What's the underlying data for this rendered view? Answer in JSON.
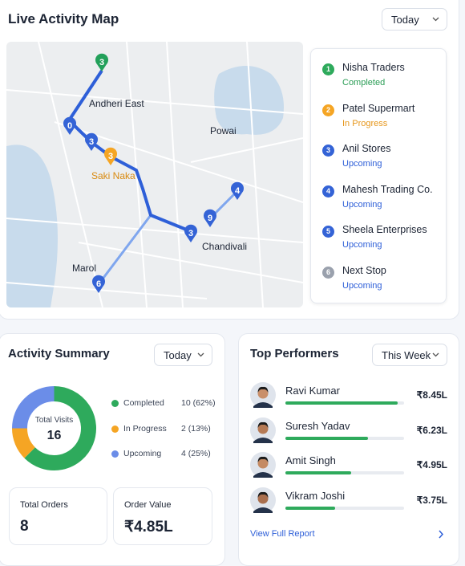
{
  "map": {
    "title": "Live Activity Map",
    "filter": "Today",
    "places": [
      "Andheri East",
      "Powai",
      "Saki Naka",
      "Chandivali",
      "Marol"
    ],
    "pins": [
      "3",
      "0",
      "3",
      "3",
      "4",
      "9",
      "3",
      "6"
    ],
    "stops": [
      {
        "number": "1",
        "name": "Nisha Traders",
        "status": "Completed"
      },
      {
        "number": "2",
        "name": "Patel Supermart",
        "status": "In Progress"
      },
      {
        "number": "3",
        "name": "Anil Stores",
        "status": "Upcoming"
      },
      {
        "number": "4",
        "name": "Mahesh Trading Co.",
        "status": "Upcoming"
      },
      {
        "number": "5",
        "name": "Sheela Enterprises",
        "status": "Upcoming"
      },
      {
        "number": "6",
        "name": "Next Stop",
        "status": "Upcoming"
      }
    ]
  },
  "summary": {
    "title": "Activity Summary",
    "filter": "Today",
    "center_label": "Total Visits",
    "total": 16,
    "segments": [
      {
        "name": "Completed",
        "value": 10,
        "value_label": "10 (62%)",
        "color": "#2eaa5c"
      },
      {
        "name": "In Progress",
        "value": 2,
        "value_label": "2 (13%)",
        "color": "#f5a524"
      },
      {
        "name": "Upcoming",
        "value": 4,
        "value_label": "4 (25%)",
        "color": "#6b8de8"
      }
    ],
    "cards": [
      {
        "label": "Total Orders",
        "value": 8
      },
      {
        "label": "Order Value",
        "value": "₹4.85L"
      }
    ]
  },
  "performers": {
    "title": "Top Performers",
    "filter": "This Week",
    "link": "View Full Report",
    "bar_color": "#2eaa5c",
    "items": [
      {
        "name": "Ravi Kumar",
        "value": 8.45,
        "value_label": "₹8.45L"
      },
      {
        "name": "Suresh Yadav",
        "value": 6.23,
        "value_label": "₹6.23L"
      },
      {
        "name": "Amit Singh",
        "value": 4.95,
        "value_label": "₹4.95L"
      },
      {
        "name": "Vikram Joshi",
        "value": 3.75,
        "value_label": "₹3.75L"
      }
    ]
  }
}
